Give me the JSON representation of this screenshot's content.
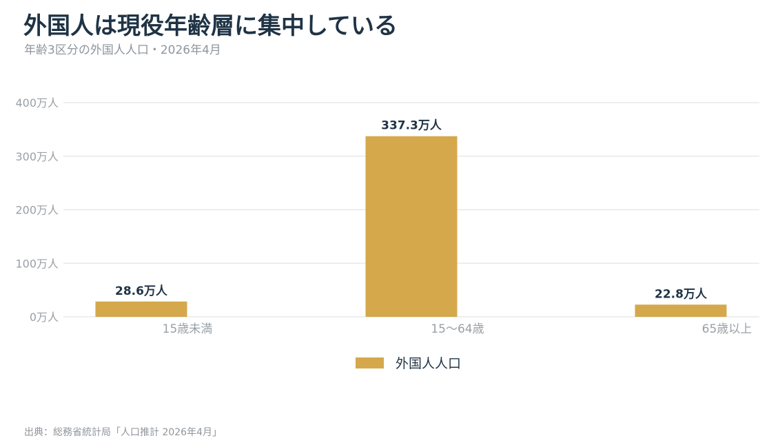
{
  "title": "外国人は現役年齢層に集中している",
  "subtitle": "年齢3区分の外国人人口・2026年4月",
  "source": "出典：総務省統計局「人口推計 2026年4月」",
  "colors": {
    "bar": "#d4a84b",
    "grid": "#e8e8e8",
    "title": "#1f3345"
  },
  "chart_data": {
    "type": "bar",
    "categories": [
      "15歳未満",
      "15〜64歳",
      "65歳以上"
    ],
    "series": [
      {
        "name": "外国人人口",
        "values": [
          28.6,
          337.3,
          22.8
        ],
        "labels": [
          "28.6万人",
          "337.3万人",
          "22.8万人"
        ]
      }
    ],
    "ylim": [
      0,
      400
    ],
    "yticks": [
      0,
      100,
      200,
      300,
      400
    ],
    "ytick_labels": [
      "0万人",
      "100万人",
      "200万人",
      "300万人",
      "400万人"
    ],
    "grid": true,
    "legend_position": "bottom"
  }
}
